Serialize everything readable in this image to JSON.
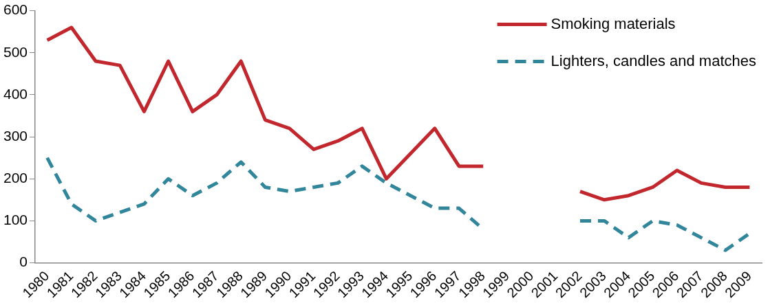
{
  "chart_data": {
    "type": "line",
    "categories": [
      "1980",
      "1981",
      "1982",
      "1983",
      "1984",
      "1985",
      "1986",
      "1987",
      "1988",
      "1989",
      "1990",
      "1991",
      "1992",
      "1993",
      "1994",
      "1995",
      "1996",
      "1997",
      "1998",
      "1999",
      "2000",
      "2001",
      "2002",
      "2003",
      "2004",
      "2005",
      "2006",
      "2007",
      "2008",
      "2009"
    ],
    "ylim": [
      0,
      600
    ],
    "yticks": [
      0,
      100,
      200,
      300,
      400,
      500,
      600
    ],
    "grid": false,
    "legend": "top right",
    "marker": "none",
    "series": [
      {
        "name": "Smoking materials",
        "color": "#c1272d",
        "line_style": "solid",
        "values": [
          530,
          560,
          480,
          470,
          360,
          480,
          360,
          400,
          480,
          340,
          320,
          270,
          290,
          320,
          200,
          260,
          320,
          230,
          230,
          null,
          null,
          null,
          170,
          150,
          160,
          180,
          220,
          190,
          180,
          180
        ]
      },
      {
        "name": "Lighters, candles and matches",
        "color": "#31869b",
        "line_style": "dashed",
        "values": [
          250,
          140,
          100,
          120,
          140,
          200,
          160,
          190,
          240,
          180,
          170,
          180,
          190,
          230,
          190,
          160,
          130,
          130,
          80,
          null,
          null,
          null,
          100,
          100,
          60,
          100,
          90,
          60,
          30,
          70
        ]
      }
    ]
  }
}
